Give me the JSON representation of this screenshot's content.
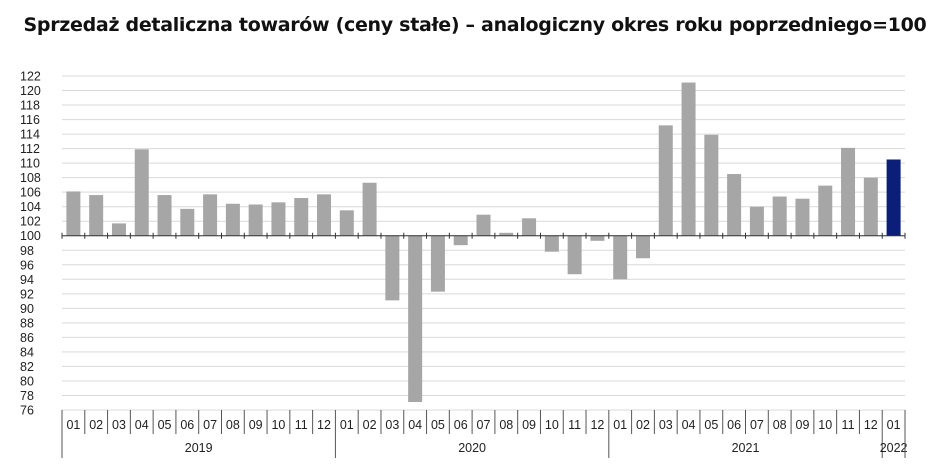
{
  "chart_data": {
    "type": "bar",
    "title": "Sprzedaż detaliczna towarów (ceny stałe) – analogiczny okres roku poprzedniego=100",
    "baseline": 100,
    "ylim": [
      76,
      122
    ],
    "y_ticks": [
      76,
      78,
      80,
      82,
      84,
      86,
      88,
      90,
      92,
      94,
      96,
      98,
      100,
      102,
      104,
      106,
      108,
      110,
      112,
      114,
      116,
      118,
      120,
      122
    ],
    "grid": "horizontal",
    "legend": "none",
    "colors": {
      "bar": "#a6a6a6",
      "highlight": "#0b1f78"
    },
    "categories": [
      "01",
      "02",
      "03",
      "04",
      "05",
      "06",
      "07",
      "08",
      "09",
      "10",
      "11",
      "12",
      "01",
      "02",
      "03",
      "04",
      "05",
      "06",
      "07",
      "08",
      "09",
      "10",
      "11",
      "12",
      "01",
      "02",
      "03",
      "04",
      "05",
      "06",
      "07",
      "08",
      "09",
      "10",
      "11",
      "12",
      "01"
    ],
    "values": [
      106.1,
      105.6,
      101.7,
      111.9,
      105.6,
      103.7,
      105.7,
      104.4,
      104.3,
      104.6,
      105.2,
      105.7,
      103.5,
      107.3,
      91.1,
      77.1,
      92.3,
      98.7,
      102.9,
      100.4,
      102.4,
      97.8,
      94.7,
      99.3,
      94.0,
      96.9,
      115.2,
      121.1,
      113.9,
      108.5,
      104.0,
      105.4,
      105.1,
      106.9,
      112.1,
      108.0,
      110.5
    ],
    "highlight_index": 36,
    "years": [
      {
        "label": "2019",
        "start": 0,
        "count": 12
      },
      {
        "label": "2020",
        "start": 12,
        "count": 12
      },
      {
        "label": "2021",
        "start": 24,
        "count": 12
      },
      {
        "label": "2022",
        "start": 36,
        "count": 1
      }
    ]
  }
}
